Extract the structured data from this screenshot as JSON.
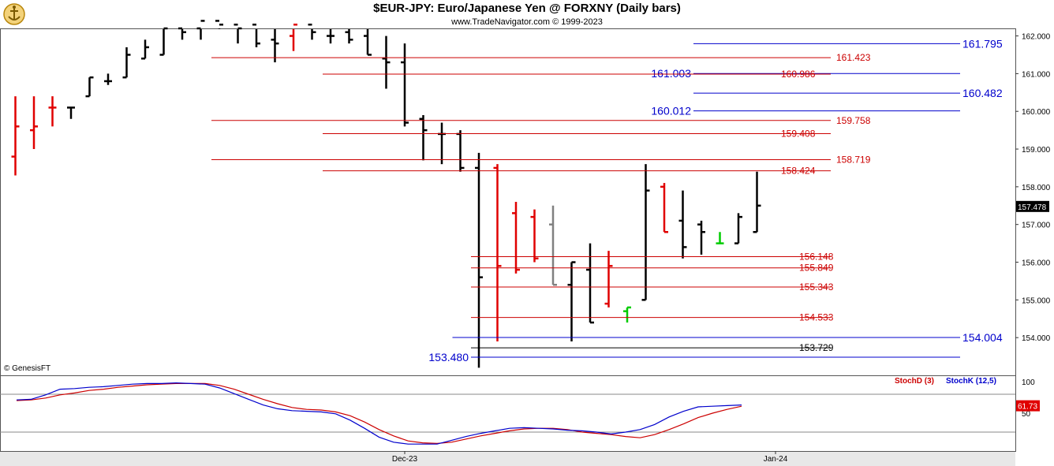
{
  "header": {
    "title": "$EUR-JPY:  Euro/Japanese Yen @ FORXNY  (Daily bars)",
    "subtitle": "www.TradeNavigator.com © 1999-2023",
    "credit": "© GenesisFT"
  },
  "colors": {
    "up_bar": "#000000",
    "down_bar": "#e00000",
    "neutral_bar": "#808080",
    "highlight_bar": "#00cc00",
    "fib_red": "#cc0000",
    "fib_blue": "#0000cc",
    "stoch_d": "#cc0000",
    "stoch_k": "#0000cc",
    "last_price_bg": "#000000",
    "stoch_value_bg": "#e00000"
  },
  "chart_data": [
    {
      "type": "ohlc",
      "ylim": [
        153.0,
        162.2
      ],
      "yticks": [
        "162.000",
        "161.000",
        "160.000",
        "159.000",
        "158.000",
        "157.000",
        "156.000",
        "155.000",
        "154.000"
      ],
      "xlabels": [
        {
          "label": "Dec-23",
          "bar": 21
        },
        {
          "label": "Jan-24",
          "bar": 41
        }
      ],
      "last_price": "157.478",
      "bars": [
        {
          "o": 158.8,
          "h": 160.4,
          "l": 158.3,
          "c": 159.6,
          "color": "down"
        },
        {
          "o": 159.5,
          "h": 160.4,
          "l": 159.0,
          "c": 159.6,
          "color": "down"
        },
        {
          "o": 160.1,
          "h": 160.4,
          "l": 159.6,
          "c": 160.1,
          "color": "down"
        },
        {
          "o": 160.1,
          "h": 160.1,
          "l": 159.8,
          "c": 160.1,
          "color": "up"
        },
        {
          "o": 160.4,
          "h": 160.9,
          "l": 160.4,
          "c": 160.9,
          "color": "up"
        },
        {
          "o": 160.8,
          "h": 161.0,
          "l": 160.7,
          "c": 160.8,
          "color": "up"
        },
        {
          "o": 160.9,
          "h": 161.7,
          "l": 160.9,
          "c": 161.5,
          "color": "up"
        },
        {
          "o": 161.4,
          "h": 161.9,
          "l": 161.4,
          "c": 161.7,
          "color": "up"
        },
        {
          "o": 161.5,
          "h": 162.6,
          "l": 161.5,
          "c": 162.2,
          "color": "up"
        },
        {
          "o": 162.2,
          "h": 162.6,
          "l": 161.9,
          "c": 162.1,
          "color": "up"
        },
        {
          "o": 162.2,
          "h": 162.6,
          "l": 161.9,
          "c": 162.4,
          "color": "up"
        },
        {
          "o": 162.4,
          "h": 162.6,
          "l": 162.2,
          "c": 162.3,
          "color": "up"
        },
        {
          "o": 162.3,
          "h": 162.6,
          "l": 161.8,
          "c": 162.2,
          "color": "up"
        },
        {
          "o": 162.3,
          "h": 162.6,
          "l": 161.7,
          "c": 161.8,
          "color": "up"
        },
        {
          "o": 161.9,
          "h": 162.6,
          "l": 161.3,
          "c": 161.8,
          "color": "up"
        },
        {
          "o": 162.0,
          "h": 162.6,
          "l": 161.6,
          "c": 162.3,
          "color": "down"
        },
        {
          "o": 162.3,
          "h": 162.6,
          "l": 161.9,
          "c": 162.1,
          "color": "up"
        },
        {
          "o": 162.0,
          "h": 162.6,
          "l": 161.8,
          "c": 162.0,
          "color": "up"
        },
        {
          "o": 162.1,
          "h": 162.6,
          "l": 161.8,
          "c": 161.9,
          "color": "up"
        },
        {
          "o": 162.0,
          "h": 162.6,
          "l": 161.5,
          "c": 161.5,
          "color": "up"
        },
        {
          "o": 161.4,
          "h": 162.0,
          "l": 160.6,
          "c": 161.3,
          "color": "up"
        },
        {
          "o": 161.3,
          "h": 161.8,
          "l": 159.6,
          "c": 159.7,
          "color": "up"
        },
        {
          "o": 159.8,
          "h": 159.9,
          "l": 158.7,
          "c": 159.5,
          "color": "up"
        },
        {
          "o": 159.4,
          "h": 159.7,
          "l": 158.6,
          "c": 159.4,
          "color": "up"
        },
        {
          "o": 159.4,
          "h": 159.5,
          "l": 158.4,
          "c": 158.5,
          "color": "up"
        },
        {
          "o": 158.5,
          "h": 158.9,
          "l": 153.2,
          "c": 155.6,
          "color": "up"
        },
        {
          "o": 158.5,
          "h": 158.6,
          "l": 153.9,
          "c": 155.9,
          "color": "down"
        },
        {
          "o": 157.3,
          "h": 157.6,
          "l": 155.7,
          "c": 155.8,
          "color": "down"
        },
        {
          "o": 157.2,
          "h": 157.4,
          "l": 156.0,
          "c": 156.1,
          "color": "down"
        },
        {
          "o": 157.0,
          "h": 157.5,
          "l": 155.4,
          "c": 155.4,
          "color": "neutral"
        },
        {
          "o": 155.4,
          "h": 156.0,
          "l": 153.9,
          "c": 156.0,
          "color": "up"
        },
        {
          "o": 155.8,
          "h": 156.5,
          "l": 154.4,
          "c": 154.4,
          "color": "up"
        },
        {
          "o": 154.9,
          "h": 156.3,
          "l": 154.8,
          "c": 155.9,
          "color": "down"
        },
        {
          "o": 154.7,
          "h": 154.8,
          "l": 154.4,
          "c": 154.8,
          "color": "highlight"
        },
        {
          "o": 155.0,
          "h": 158.6,
          "l": 155.0,
          "c": 157.9,
          "color": "up"
        },
        {
          "o": 158.0,
          "h": 158.1,
          "l": 156.8,
          "c": 156.8,
          "color": "down"
        },
        {
          "o": 157.1,
          "h": 157.9,
          "l": 156.1,
          "c": 156.4,
          "color": "up"
        },
        {
          "o": 157.0,
          "h": 157.1,
          "l": 156.2,
          "c": 156.8,
          "color": "up"
        },
        {
          "o": 156.5,
          "h": 156.8,
          "l": 156.5,
          "c": 156.5,
          "color": "highlight"
        },
        {
          "o": 156.5,
          "h": 157.3,
          "l": 156.5,
          "c": 157.2,
          "color": "up"
        },
        {
          "o": 156.8,
          "h": 158.4,
          "l": 156.8,
          "c": 157.5,
          "color": "up"
        }
      ],
      "levels": [
        {
          "value": 161.795,
          "label": "161.795",
          "color": "blue",
          "side": "right",
          "x_start_bar": 37
        },
        {
          "value": 161.423,
          "label": "161.423",
          "color": "red",
          "side": "mid",
          "x_start_bar": 11
        },
        {
          "value": 161.003,
          "label": "161.003",
          "color": "blue",
          "side": "left",
          "x_start_bar": 37
        },
        {
          "value": 160.986,
          "label": "160.986",
          "color": "red",
          "side": "mid",
          "x_start_bar": 17
        },
        {
          "value": 160.482,
          "label": "160.482",
          "color": "blue",
          "side": "right",
          "x_start_bar": 37
        },
        {
          "value": 160.012,
          "label": "160.012",
          "color": "blue",
          "side": "left",
          "x_start_bar": 37
        },
        {
          "value": 159.758,
          "label": "159.758",
          "color": "red",
          "side": "mid",
          "x_start_bar": 11
        },
        {
          "value": 159.408,
          "label": "159.408",
          "color": "red",
          "side": "mid",
          "x_start_bar": 17
        },
        {
          "value": 158.719,
          "label": "158.719",
          "color": "red",
          "side": "mid",
          "x_start_bar": 11
        },
        {
          "value": 158.424,
          "label": "158.424",
          "color": "red",
          "side": "mid",
          "x_start_bar": 17
        },
        {
          "value": 156.148,
          "label": "156.148",
          "color": "red",
          "side": "mid",
          "x_start_bar": 25
        },
        {
          "value": 155.849,
          "label": "155.849",
          "color": "red",
          "side": "mid",
          "x_start_bar": 25
        },
        {
          "value": 155.343,
          "label": "155.343",
          "color": "red",
          "side": "mid",
          "x_start_bar": 25
        },
        {
          "value": 154.533,
          "label": "154.533",
          "color": "red",
          "side": "mid",
          "x_start_bar": 25
        },
        {
          "value": 154.004,
          "label": "154.004",
          "color": "blue",
          "side": "right",
          "x_start_bar": 24
        },
        {
          "value": 153.729,
          "label": "153.729",
          "color": "black",
          "side": "mid",
          "x_start_bar": 25
        },
        {
          "value": 153.48,
          "label": "153.480",
          "color": "blue",
          "side": "left",
          "x_start_bar": 25
        }
      ]
    },
    {
      "type": "line",
      "ylim": [
        0,
        100
      ],
      "yticks": [
        "100",
        "50"
      ],
      "hlines": [
        80,
        20
      ],
      "series": [
        {
          "name": "StochD (3)",
          "color": "red",
          "values": [
            70,
            71,
            74,
            79,
            82,
            86,
            88,
            91,
            93,
            95,
            96,
            97,
            97,
            97,
            94,
            88,
            80,
            72,
            65,
            59,
            56,
            55,
            52,
            46,
            36,
            24,
            14,
            6,
            3,
            2,
            4,
            9,
            14,
            18,
            22,
            25,
            26,
            26,
            24,
            20,
            18,
            16,
            13,
            11,
            16,
            24,
            33,
            43,
            50,
            56,
            61
          ]
        },
        {
          "name": "StochK (12,5)",
          "color": "blue",
          "values": [
            71,
            72,
            79,
            88,
            89,
            91,
            92,
            94,
            96,
            97,
            97,
            98,
            97,
            96,
            90,
            81,
            72,
            63,
            57,
            54,
            53,
            52,
            49,
            39,
            26,
            12,
            4,
            1,
            1,
            1,
            7,
            13,
            18,
            22,
            26,
            27,
            26,
            25,
            23,
            22,
            20,
            17,
            20,
            24,
            32,
            44,
            53,
            60,
            61,
            62,
            63
          ]
        }
      ],
      "value_label": "61.73"
    }
  ]
}
